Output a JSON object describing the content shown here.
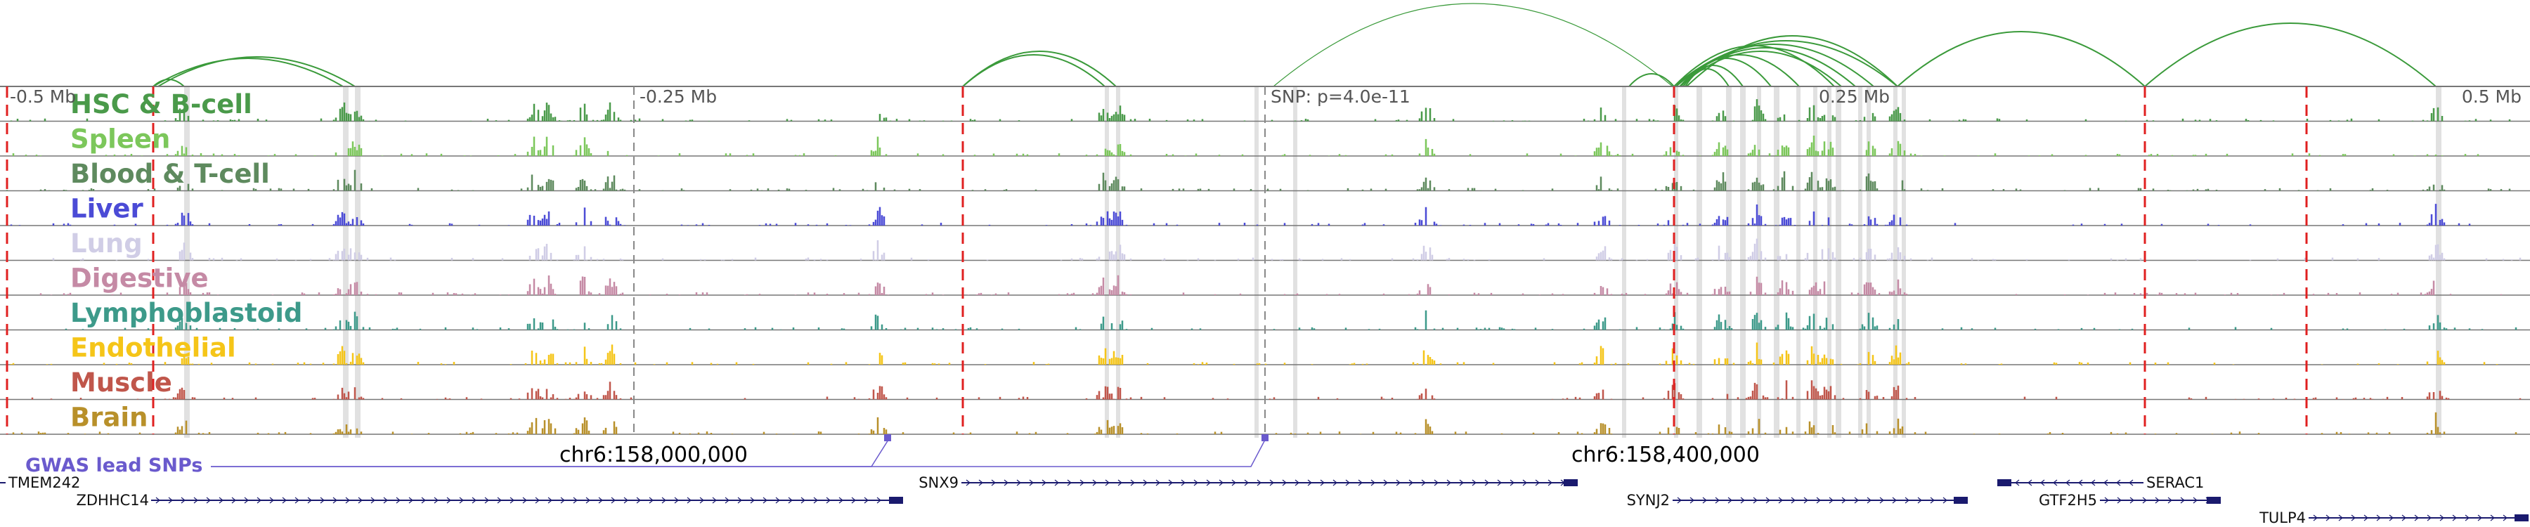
{
  "region": {
    "coord_labels": [
      {
        "text": "-0.5 Mb",
        "at": "left-edge"
      },
      {
        "text": "-0.25 Mb",
        "at": "quarter"
      },
      {
        "text": "SNP: p=4.0e-11",
        "at": "lead-snp"
      },
      {
        "text": "0.25 Mb",
        "at": "three-quarter"
      },
      {
        "text": "0.5 Mb",
        "at": "right-edge"
      }
    ],
    "chr_labels": [
      "chr6:158,000,000",
      "chr6:158,400,000"
    ]
  },
  "tracks": [
    {
      "name": "HSC & B-cell",
      "color": "#4a9a4a"
    },
    {
      "name": "Spleen",
      "color": "#7cc75b"
    },
    {
      "name": "Blood & T-cell",
      "color": "#5e8a5e"
    },
    {
      "name": "Liver",
      "color": "#4b4bd6"
    },
    {
      "name": "Lung",
      "color": "#d0cde6"
    },
    {
      "name": "Digestive",
      "color": "#c58aa5"
    },
    {
      "name": "Lymphoblastoid",
      "color": "#3d9a8a"
    },
    {
      "name": "Endothelial",
      "color": "#f5c518"
    },
    {
      "name": "Muscle",
      "color": "#c0564b"
    },
    {
      "name": "Brain",
      "color": "#b8902a"
    }
  ],
  "gwas": {
    "label": "GWAS lead SNPs",
    "color": "#6a5acd"
  },
  "genes": [
    {
      "name": "TMEM242",
      "strand": "-"
    },
    {
      "name": "ZDHHC14",
      "strand": "+"
    },
    {
      "name": "SNX9",
      "strand": "+"
    },
    {
      "name": "SYNJ2",
      "strand": "+"
    },
    {
      "name": "SERAC1",
      "strand": "-"
    },
    {
      "name": "GTF2H5",
      "strand": "+"
    },
    {
      "name": "TULP4",
      "strand": "+"
    }
  ],
  "colors": {
    "arc": "#3a9a3a",
    "highlight": "#d9d9d9",
    "dashed_red": "#e02020",
    "gene": "#1a1a6e"
  }
}
